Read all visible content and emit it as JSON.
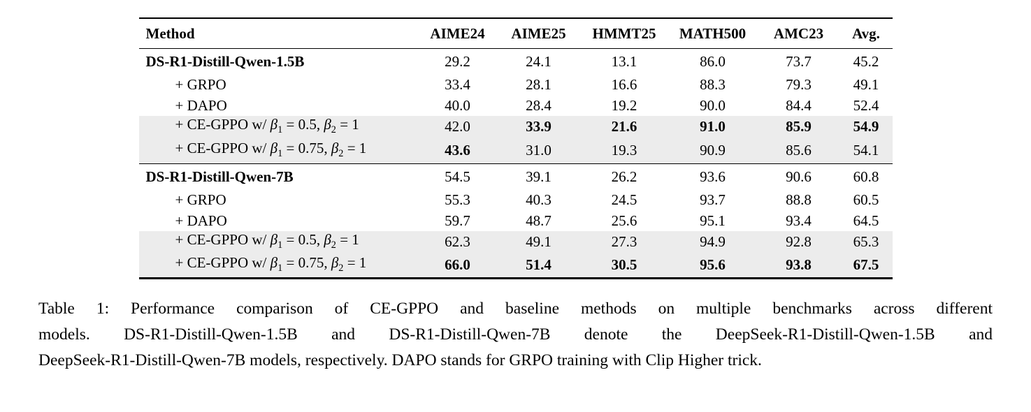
{
  "table": {
    "columns": [
      "Method",
      "AIME24",
      "AIME25",
      "HMMT25",
      "MATH500",
      "AMC23",
      "Avg."
    ],
    "highlight_color": "#ececec",
    "rows": [
      {
        "method": [
          {
            "text": "DS-R1-Distill-Qwen-1.5B",
            "bold": true
          }
        ],
        "indent": false,
        "highlight": false,
        "group_start": false,
        "values": [
          {
            "v": "29.2"
          },
          {
            "v": "24.1"
          },
          {
            "v": "13.1"
          },
          {
            "v": "86.0"
          },
          {
            "v": "73.7"
          },
          {
            "v": "45.2"
          }
        ]
      },
      {
        "method": [
          {
            "text": "+ GRPO"
          }
        ],
        "indent": true,
        "highlight": false,
        "group_start": false,
        "values": [
          {
            "v": "33.4"
          },
          {
            "v": "28.1"
          },
          {
            "v": "16.6"
          },
          {
            "v": "88.3"
          },
          {
            "v": "79.3"
          },
          {
            "v": "49.1"
          }
        ]
      },
      {
        "method": [
          {
            "text": "+ DAPO"
          }
        ],
        "indent": true,
        "highlight": false,
        "group_start": false,
        "values": [
          {
            "v": "40.0"
          },
          {
            "v": "28.4"
          },
          {
            "v": "19.2"
          },
          {
            "v": "90.0"
          },
          {
            "v": "84.4"
          },
          {
            "v": "52.4"
          }
        ]
      },
      {
        "method": [
          {
            "text": "+ CE-GPPO w/ "
          },
          {
            "text": "β",
            "italic": true
          },
          {
            "text": "1",
            "sub": true
          },
          {
            "text": " = 0.5, "
          },
          {
            "text": "β",
            "italic": true
          },
          {
            "text": "2",
            "sub": true
          },
          {
            "text": " = 1"
          }
        ],
        "indent": true,
        "highlight": true,
        "group_start": false,
        "values": [
          {
            "v": "42.0"
          },
          {
            "v": "33.9",
            "bold": true
          },
          {
            "v": "21.6",
            "bold": true
          },
          {
            "v": "91.0",
            "bold": true
          },
          {
            "v": "85.9",
            "bold": true
          },
          {
            "v": "54.9",
            "bold": true
          }
        ]
      },
      {
        "method": [
          {
            "text": "+ CE-GPPO w/ "
          },
          {
            "text": "β",
            "italic": true
          },
          {
            "text": "1",
            "sub": true
          },
          {
            "text": " = 0.75, "
          },
          {
            "text": "β",
            "italic": true
          },
          {
            "text": "2",
            "sub": true
          },
          {
            "text": " = 1"
          }
        ],
        "indent": true,
        "highlight": true,
        "group_start": false,
        "values": [
          {
            "v": "43.6",
            "bold": true
          },
          {
            "v": "31.0"
          },
          {
            "v": "19.3"
          },
          {
            "v": "90.9"
          },
          {
            "v": "85.6"
          },
          {
            "v": "54.1"
          }
        ]
      },
      {
        "method": [
          {
            "text": "DS-R1-Distill-Qwen-7B",
            "bold": true
          }
        ],
        "indent": false,
        "highlight": false,
        "group_start": true,
        "values": [
          {
            "v": "54.5"
          },
          {
            "v": "39.1"
          },
          {
            "v": "26.2"
          },
          {
            "v": "93.6"
          },
          {
            "v": "90.6"
          },
          {
            "v": "60.8"
          }
        ]
      },
      {
        "method": [
          {
            "text": "+ GRPO"
          }
        ],
        "indent": true,
        "highlight": false,
        "group_start": false,
        "values": [
          {
            "v": "55.3"
          },
          {
            "v": "40.3"
          },
          {
            "v": "24.5"
          },
          {
            "v": "93.7"
          },
          {
            "v": "88.8"
          },
          {
            "v": "60.5"
          }
        ]
      },
      {
        "method": [
          {
            "text": "+ DAPO"
          }
        ],
        "indent": true,
        "highlight": false,
        "group_start": false,
        "values": [
          {
            "v": "59.7"
          },
          {
            "v": "48.7"
          },
          {
            "v": "25.6"
          },
          {
            "v": "95.1"
          },
          {
            "v": "93.4"
          },
          {
            "v": "64.5"
          }
        ]
      },
      {
        "method": [
          {
            "text": "+ CE-GPPO w/ "
          },
          {
            "text": "β",
            "italic": true
          },
          {
            "text": "1",
            "sub": true
          },
          {
            "text": " = 0.5, "
          },
          {
            "text": "β",
            "italic": true
          },
          {
            "text": "2",
            "sub": true
          },
          {
            "text": " = 1"
          }
        ],
        "indent": true,
        "highlight": true,
        "group_start": false,
        "values": [
          {
            "v": "62.3"
          },
          {
            "v": "49.1"
          },
          {
            "v": "27.3"
          },
          {
            "v": "94.9"
          },
          {
            "v": "92.8"
          },
          {
            "v": "65.3"
          }
        ]
      },
      {
        "method": [
          {
            "text": "+ CE-GPPO w/ "
          },
          {
            "text": "β",
            "italic": true
          },
          {
            "text": "1",
            "sub": true
          },
          {
            "text": " = 0.75, "
          },
          {
            "text": "β",
            "italic": true
          },
          {
            "text": "2",
            "sub": true
          },
          {
            "text": " = 1"
          }
        ],
        "indent": true,
        "highlight": true,
        "group_start": false,
        "values": [
          {
            "v": "66.0",
            "bold": true
          },
          {
            "v": "51.4",
            "bold": true
          },
          {
            "v": "30.5",
            "bold": true
          },
          {
            "v": "95.6",
            "bold": true
          },
          {
            "v": "93.8",
            "bold": true
          },
          {
            "v": "67.5",
            "bold": true
          }
        ]
      }
    ]
  },
  "caption": {
    "lines": [
      "Table 1: Performance comparison of CE-GPPO and baseline methods on multiple benchmarks across different",
      "models. DS-R1-Distill-Qwen-1.5B and DS-R1-Distill-Qwen-7B denote the DeepSeek-R1-Distill-Qwen-1.5B and",
      "DeepSeek-R1-Distill-Qwen-7B models, respectively. DAPO stands for GRPO training with Clip Higher trick."
    ]
  }
}
